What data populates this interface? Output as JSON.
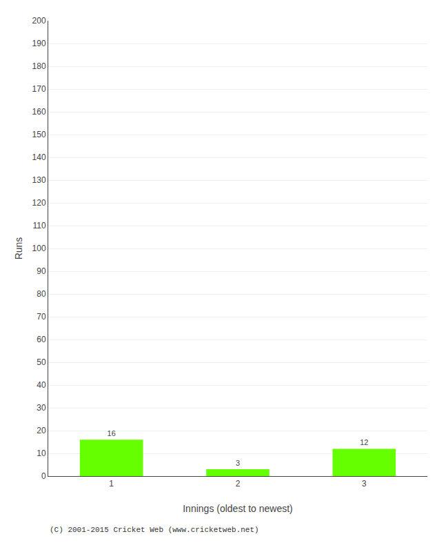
{
  "chart_data": {
    "type": "bar",
    "categories": [
      "1",
      "2",
      "3"
    ],
    "values": [
      16,
      3,
      12
    ],
    "color": "#66ff00",
    "xlabel": "Innings (oldest to newest)",
    "ylabel": "Runs",
    "ylim": [
      0,
      200
    ],
    "yticks": [
      0,
      10,
      20,
      30,
      40,
      50,
      60,
      70,
      80,
      90,
      100,
      110,
      120,
      130,
      140,
      150,
      160,
      170,
      180,
      190,
      200
    ],
    "grid": true,
    "data_labels": true,
    "annotations": [
      "(C) 2001-2015 Cricket Web (www.cricketweb.net)"
    ]
  }
}
